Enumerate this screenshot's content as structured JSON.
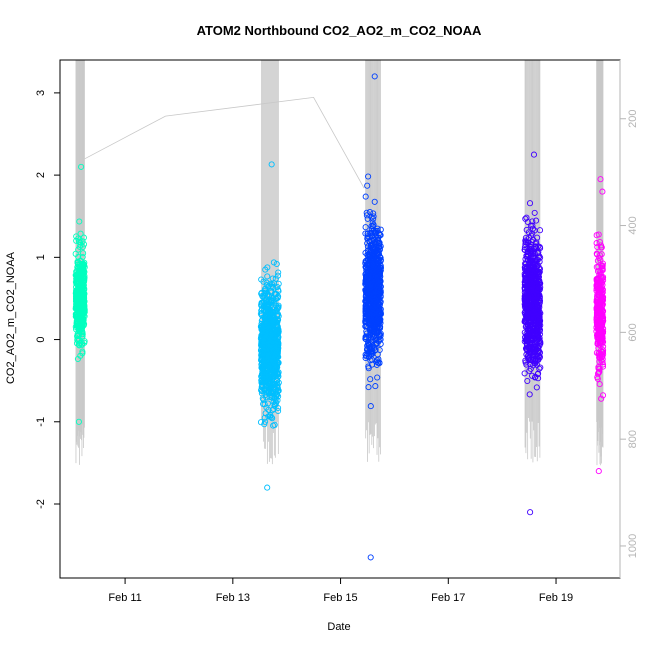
{
  "chart_data": {
    "type": "scatter",
    "title": "ATOM2 Northbound CO2_AO2_m_CO2_NOAA",
    "xlabel": "Date",
    "ylabel": "CO2_AO2_m_CO2_NOAA",
    "xlim": [
      "2018-02-09T19:00",
      "2018-02-20T04:30"
    ],
    "ylim": [
      -2.9,
      3.4
    ],
    "x_ticks": [
      {
        "value": "2018-02-11",
        "label": "Feb 11"
      },
      {
        "value": "2018-02-13",
        "label": "Feb 13"
      },
      {
        "value": "2018-02-15",
        "label": "Feb 15"
      },
      {
        "value": "2018-02-17",
        "label": "Feb 17"
      },
      {
        "value": "2018-02-19",
        "label": "Feb 19"
      }
    ],
    "y_ticks": [
      -2,
      -1,
      0,
      1,
      2,
      3
    ],
    "y2_axis": {
      "reversed": true,
      "lim": [
        90,
        1060
      ],
      "ticks": [
        200,
        400,
        600,
        800,
        1000
      ],
      "color": "#b5b5b5"
    },
    "grid": false,
    "legend": "none",
    "clusters": [
      {
        "start": "2018-02-10T02:00",
        "end": "2018-02-10T06:00",
        "center": 0.5,
        "spread": 0.28,
        "min": -1.0,
        "max": 2.1,
        "color": "#00ffbf"
      },
      {
        "start": "2018-02-13T12:30",
        "end": "2018-02-13T20:30",
        "center": -0.1,
        "spread": 0.35,
        "min": -1.8,
        "max": 2.13,
        "color": "#00bfff"
      },
      {
        "start": "2018-02-15T11:00",
        "end": "2018-02-15T18:00",
        "center": 0.55,
        "spread": 0.4,
        "min": -2.65,
        "max": 3.2,
        "color": "#0040ff"
      },
      {
        "start": "2018-02-18T10:00",
        "end": "2018-02-18T17:00",
        "center": 0.45,
        "spread": 0.38,
        "min": -2.1,
        "max": 2.25,
        "color": "#4000ff"
      },
      {
        "start": "2018-02-19T18:00",
        "end": "2018-02-19T21:00",
        "center": 0.3,
        "spread": 0.35,
        "min": -1.6,
        "max": 1.95,
        "color": "#ff00ff"
      }
    ],
    "pressure_profile": {
      "color": "#c8c8c8",
      "points": [
        [
          "2018-02-10T06:00",
          275
        ],
        [
          "2018-02-11T18:00",
          195
        ],
        [
          "2018-02-14T12:00",
          160
        ],
        [
          "2018-02-15T10:30",
          330
        ]
      ]
    }
  }
}
